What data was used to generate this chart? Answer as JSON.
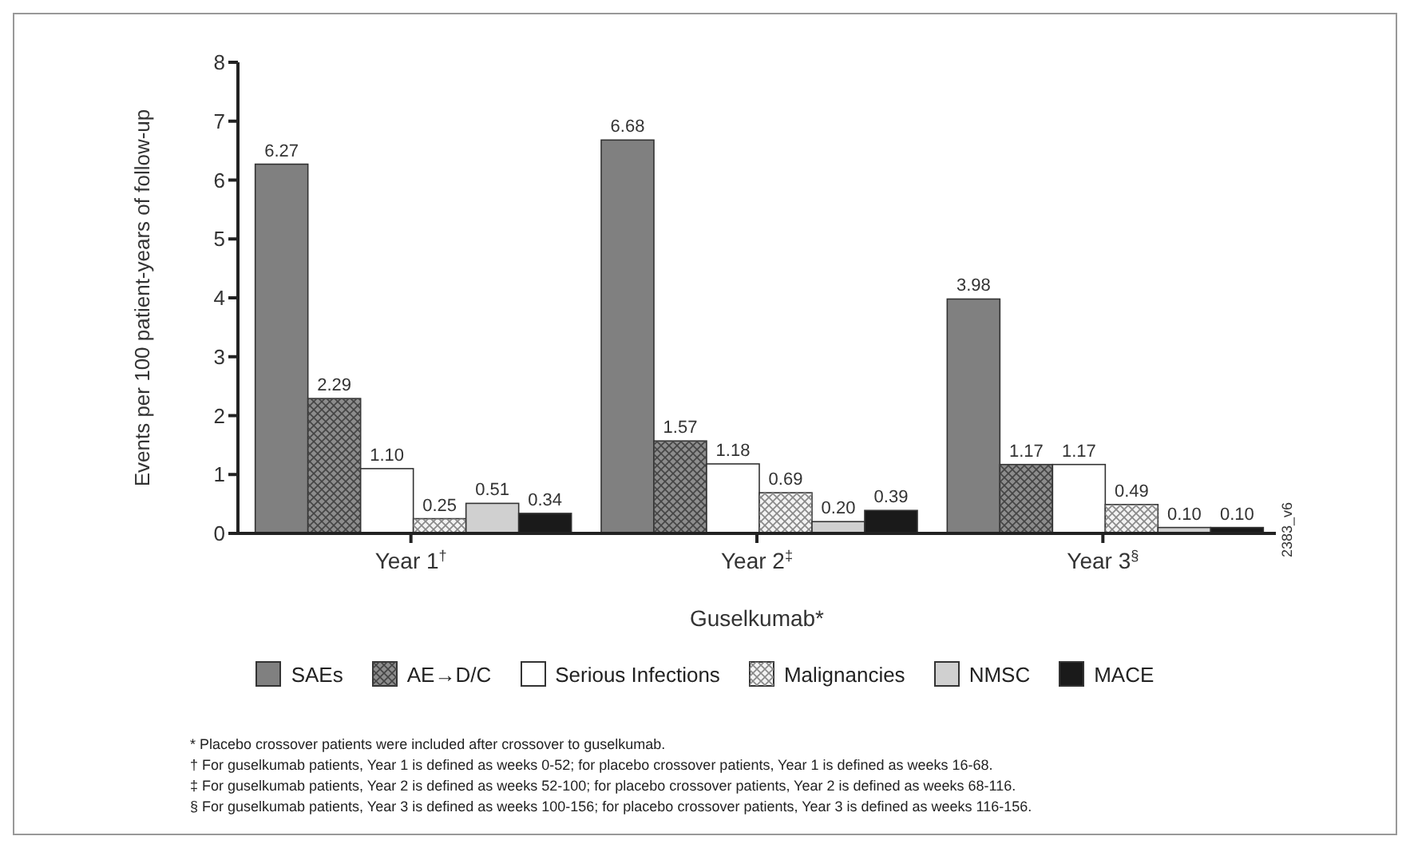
{
  "chart_data": {
    "type": "bar",
    "categories": [
      "Year 1$^{†}$",
      "Year 2$^{‡}$",
      "Year 3$^{§}$"
    ],
    "xlabel": "Guselkumab*",
    "ylabel": "Events per 100 patient-years of follow-up",
    "ylim": [
      0,
      8
    ],
    "yticks": [
      0,
      1,
      2,
      3,
      4,
      5,
      6,
      7,
      8
    ],
    "grid": false,
    "legend": "bottom",
    "series": [
      {
        "name": "SAEs",
        "color": "#808080",
        "values": [
          6.27,
          6.68,
          3.98
        ],
        "value_labels": [
          "6.27",
          "6.68",
          "3.98"
        ]
      },
      {
        "name": "AE→D/C",
        "color": "#8c8c8c",
        "values": [
          2.29,
          1.57,
          1.17
        ],
        "value_labels": [
          "2.29",
          "1.57",
          "1.17"
        ]
      },
      {
        "name": "Serious Infections",
        "color": "#ffffff",
        "values": [
          1.1,
          1.18,
          1.17
        ],
        "value_labels": [
          "1.10",
          "1.18",
          "1.17"
        ]
      },
      {
        "name": "Malignancies",
        "color": "#f2f2f2",
        "values": [
          0.25,
          0.69,
          0.49
        ],
        "value_labels": [
          "0.25",
          "0.69",
          "0.49"
        ]
      },
      {
        "name": "NMSC",
        "color": "#d0d0d0",
        "values": [
          0.51,
          0.2,
          0.1
        ],
        "value_labels": [
          "0.51",
          "0.20",
          "0.10"
        ]
      },
      {
        "name": "MACE",
        "color": "#1a1a1a",
        "values": [
          0.34,
          0.39,
          0.1
        ],
        "value_labels": [
          "0.34",
          "0.39",
          "0.10"
        ]
      }
    ],
    "annotations": [
      "2383_v6",
      "* Placebo crossover patients were included after crossover to guselkumab.",
      "† For guselkumab patients, Year 1 is defined as weeks 0-52; for placebo crossover patients, Year 1 is defined as weeks 16-68.",
      "‡ For guselkumab patients, Year 2 is defined as weeks 52-100; for placebo crossover patients, Year 2 is defined as weeks 68-116.",
      "§ For guselkumab patients, Year 3 is defined as weeks 100-156; for placebo crossover patients, Year 3 is defined as weeks 116-156."
    ]
  }
}
